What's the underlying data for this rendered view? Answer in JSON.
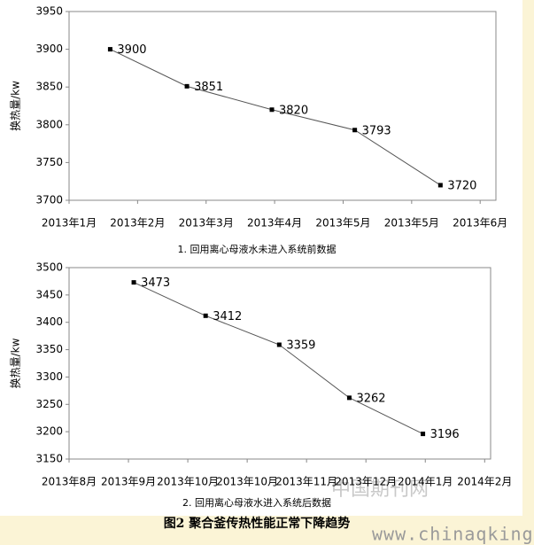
{
  "chart_data": [
    {
      "type": "line",
      "subtitle": "1. 回用离心母液水未进入系统前数据",
      "y_label": "换热量/kw",
      "x": [
        0.6,
        1.72,
        2.96,
        4.17,
        5.42
      ],
      "values": [
        3900,
        3851,
        3820,
        3793,
        3720
      ],
      "color": "#000000",
      "xlim": [
        0,
        6.23
      ],
      "xticks": [
        {
          "value": 0,
          "label": "2013年1月"
        },
        {
          "value": 1,
          "label": "2013年2月"
        },
        {
          "value": 2,
          "label": "2013年3月"
        },
        {
          "value": 3,
          "label": "2013年4月"
        },
        {
          "value": 4,
          "label": "2013年5月"
        },
        {
          "value": 5,
          "label": "2013年5月"
        },
        {
          "value": 6,
          "label": "2013年6月"
        }
      ],
      "ylim": [
        3700,
        3950
      ],
      "yticks": [
        3700,
        3750,
        3800,
        3850,
        3900,
        3950
      ]
    },
    {
      "type": "line",
      "subtitle": "2. 回用离心母液水进入系统后数据",
      "y_label": "换热量/kw",
      "x": [
        1.09,
        2.3,
        3.54,
        4.72,
        5.96
      ],
      "values": [
        3473,
        3412,
        3359,
        3262,
        3196
      ],
      "color": "#000000",
      "xlim": [
        0,
        7.1
      ],
      "xticks": [
        {
          "value": 0,
          "label": "2013年8月"
        },
        {
          "value": 1,
          "label": "2013年9月"
        },
        {
          "value": 2,
          "label": "2013年10月"
        },
        {
          "value": 3,
          "label": "2013年10月"
        },
        {
          "value": 4,
          "label": "2013年11月"
        },
        {
          "value": 5,
          "label": "2013年12月"
        },
        {
          "value": 6,
          "label": "2014年1月"
        },
        {
          "value": 7,
          "label": "2014年2月"
        }
      ],
      "ylim": [
        3150,
        3500
      ],
      "yticks": [
        3150,
        3200,
        3250,
        3300,
        3350,
        3400,
        3450,
        3500
      ]
    }
  ],
  "caption": "图2  聚合釜传热性能正常下降趋势",
  "watermark": [
    "中国期刊网",
    "www.chinaqking.com"
  ]
}
